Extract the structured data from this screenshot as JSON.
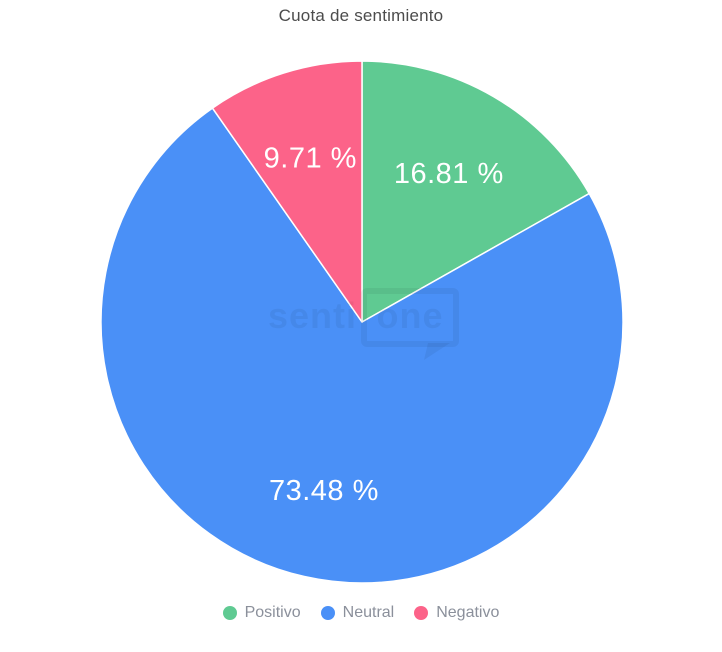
{
  "chart_data": {
    "type": "pie",
    "title": "Cuota de sentimiento",
    "start_angle": "top",
    "direction": "clockwise",
    "label_color": "#ffffff",
    "legend_position": "bottom",
    "slices": [
      {
        "label": "Positivo",
        "value": 16.81,
        "display": "16.81 %",
        "color": "#5fca92"
      },
      {
        "label": "Neutral",
        "value": 73.48,
        "display": "73.48 %",
        "color": "#4a90f7"
      },
      {
        "label": "Negativo",
        "value": 9.71,
        "display": "9.71 %",
        "color": "#fc6389"
      }
    ]
  },
  "watermark": {
    "text_left": "senti",
    "text_right": "one"
  }
}
